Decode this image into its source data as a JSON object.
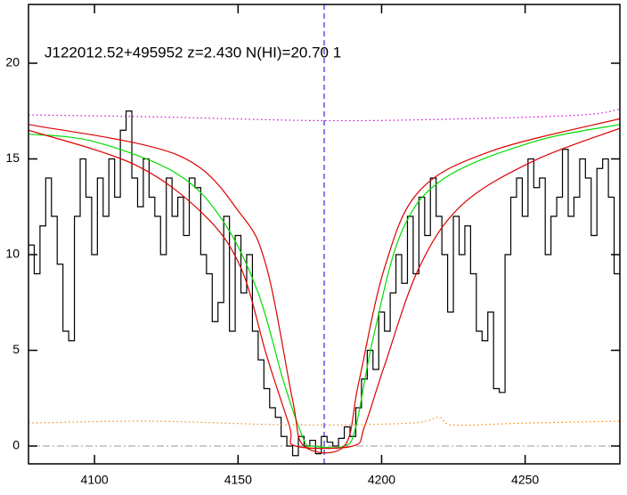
{
  "chart_data": {
    "type": "spectrum",
    "title": "J122012.52+495952 z=2.430 N(HI)=20.70 1",
    "xlim": [
      4077,
      4283
    ],
    "xticks": [
      4100,
      4150,
      4200,
      4250
    ],
    "ylim": [
      -0.93,
      23.07
    ],
    "yticks": [
      0,
      5,
      10,
      15,
      20
    ],
    "vline": 4180,
    "hline": 0,
    "series": [
      {
        "style": "step",
        "color": "#000000",
        "x": [
          4078,
          4080,
          4082,
          4084,
          4086,
          4088,
          4090,
          4092,
          4094,
          4096,
          4098,
          4100,
          4102,
          4104,
          4106,
          4108,
          4110,
          4112,
          4114,
          4116,
          4118,
          4120,
          4122,
          4124,
          4126,
          4128,
          4130,
          4132,
          4134,
          4136,
          4138,
          4140,
          4142,
          4144,
          4146,
          4148,
          4150,
          4152,
          4154,
          4156,
          4158,
          4160,
          4162,
          4164,
          4166,
          4168,
          4170,
          4172,
          4174,
          4176,
          4178,
          4180,
          4182,
          4184,
          4186,
          4188,
          4190,
          4192,
          4194,
          4196,
          4198,
          4200,
          4202,
          4204,
          4206,
          4208,
          4210,
          4212,
          4214,
          4216,
          4218,
          4220,
          4222,
          4224,
          4226,
          4228,
          4230,
          4232,
          4234,
          4236,
          4238,
          4240,
          4242,
          4244,
          4246,
          4248,
          4250,
          4252,
          4254,
          4256,
          4258,
          4260,
          4262,
          4264,
          4266,
          4268,
          4270,
          4272,
          4274,
          4276,
          4278,
          4280,
          4282
        ],
        "values": [
          10.5,
          9,
          11.5,
          14,
          12,
          9.5,
          6,
          5.5,
          12,
          15,
          13,
          10,
          14,
          12,
          15,
          13,
          16.5,
          17.5,
          14,
          12.5,
          15,
          13,
          12,
          10,
          14,
          12,
          13,
          11,
          14,
          13.5,
          10,
          9,
          6.5,
          7.5,
          12,
          6,
          11,
          8,
          10,
          6,
          4.5,
          3,
          2,
          1.5,
          0.5,
          0,
          -0.5,
          0.5,
          0,
          0.3,
          -0.4,
          0.5,
          0.2,
          0,
          0.4,
          1,
          0.5,
          2,
          3.5,
          5,
          4,
          7,
          6,
          8,
          10,
          8.5,
          12,
          9,
          13,
          11,
          14,
          12,
          10,
          7,
          12,
          10,
          11.5,
          9,
          6,
          5.5,
          7,
          3,
          2.8,
          10,
          13,
          14,
          12,
          15,
          13.5,
          14,
          10,
          12,
          13,
          15.5,
          12,
          13,
          15,
          14,
          11,
          14.5,
          15,
          13,
          9
        ]
      },
      {
        "style": "smooth",
        "color": "#00dd00",
        "x": [
          4077,
          4100,
          4129,
          4145,
          4157,
          4166,
          4173,
          4176,
          4187,
          4191,
          4197,
          4207,
          4222,
          4253,
          4283
        ],
        "values": [
          16.3,
          15.9,
          14.2,
          11.7,
          8,
          3.3,
          0.3,
          0,
          0,
          1,
          5.6,
          11.2,
          14,
          15.9,
          16.8
        ]
      },
      {
        "style": "smooth",
        "color": "#dd0000",
        "x": [
          4077,
          4129,
          4151,
          4160,
          4169,
          4173,
          4187,
          4192,
          4201,
          4213,
          4238,
          4283
        ],
        "values": [
          16.8,
          15.2,
          12.1,
          9.3,
          2.4,
          0,
          0,
          3.3,
          9.3,
          13.3,
          15.4,
          17.1
        ]
      },
      {
        "style": "smooth",
        "color": "#dd0000",
        "x": [
          4077,
          4114,
          4138,
          4151,
          4160,
          4168,
          4170,
          4190,
          4194,
          4201,
          4213,
          4228,
          4253,
          4283
        ],
        "values": [
          16.5,
          14.7,
          12.1,
          9.3,
          4.7,
          1,
          0,
          0,
          1,
          4.2,
          9.3,
          12.6,
          14.9,
          16.6
        ]
      },
      {
        "style": "dotted",
        "color": "#dd00dd",
        "x": [
          4077,
          4120,
          4180,
          4230,
          4270,
          4283
        ],
        "values": [
          17.3,
          17.2,
          17.0,
          17.1,
          17.3,
          17.6
        ]
      },
      {
        "style": "dotted",
        "color": "#ff8800",
        "x": [
          4077,
          4120,
          4170,
          4210,
          4220,
          4225,
          4250,
          4283
        ],
        "values": [
          1.2,
          1.3,
          1.1,
          1.2,
          1.5,
          1.1,
          1.2,
          1.3
        ]
      }
    ]
  }
}
